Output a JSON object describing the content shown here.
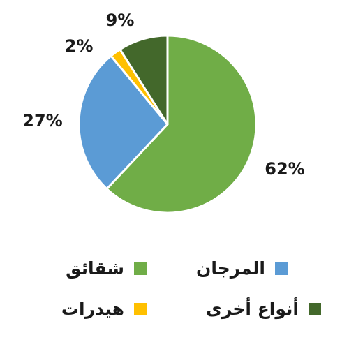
{
  "chart_data": {
    "type": "pie",
    "slices": [
      {
        "label": "شقائق",
        "value": 62,
        "value_label": "62%",
        "color": "#70AD47"
      },
      {
        "label": "المرجان",
        "value": 27,
        "value_label": "27%",
        "color": "#5B9BD5"
      },
      {
        "label": "هيدرات",
        "value": 2,
        "value_label": "2%",
        "color": "#FFC000"
      },
      {
        "label": "أنواع أخرى",
        "value": 9,
        "value_label": "9%",
        "color": "#43682B"
      }
    ],
    "start_angle_deg": 0,
    "direction": "clockwise",
    "legend_position": "bottom"
  },
  "legend": {
    "items": [
      {
        "label": "شقائق",
        "color": "#70AD47"
      },
      {
        "label": "المرجان",
        "color": "#5B9BD5"
      },
      {
        "label": "هيدرات",
        "color": "#FFC000"
      },
      {
        "label": "أنواع أخرى",
        "color": "#43682B"
      }
    ]
  }
}
